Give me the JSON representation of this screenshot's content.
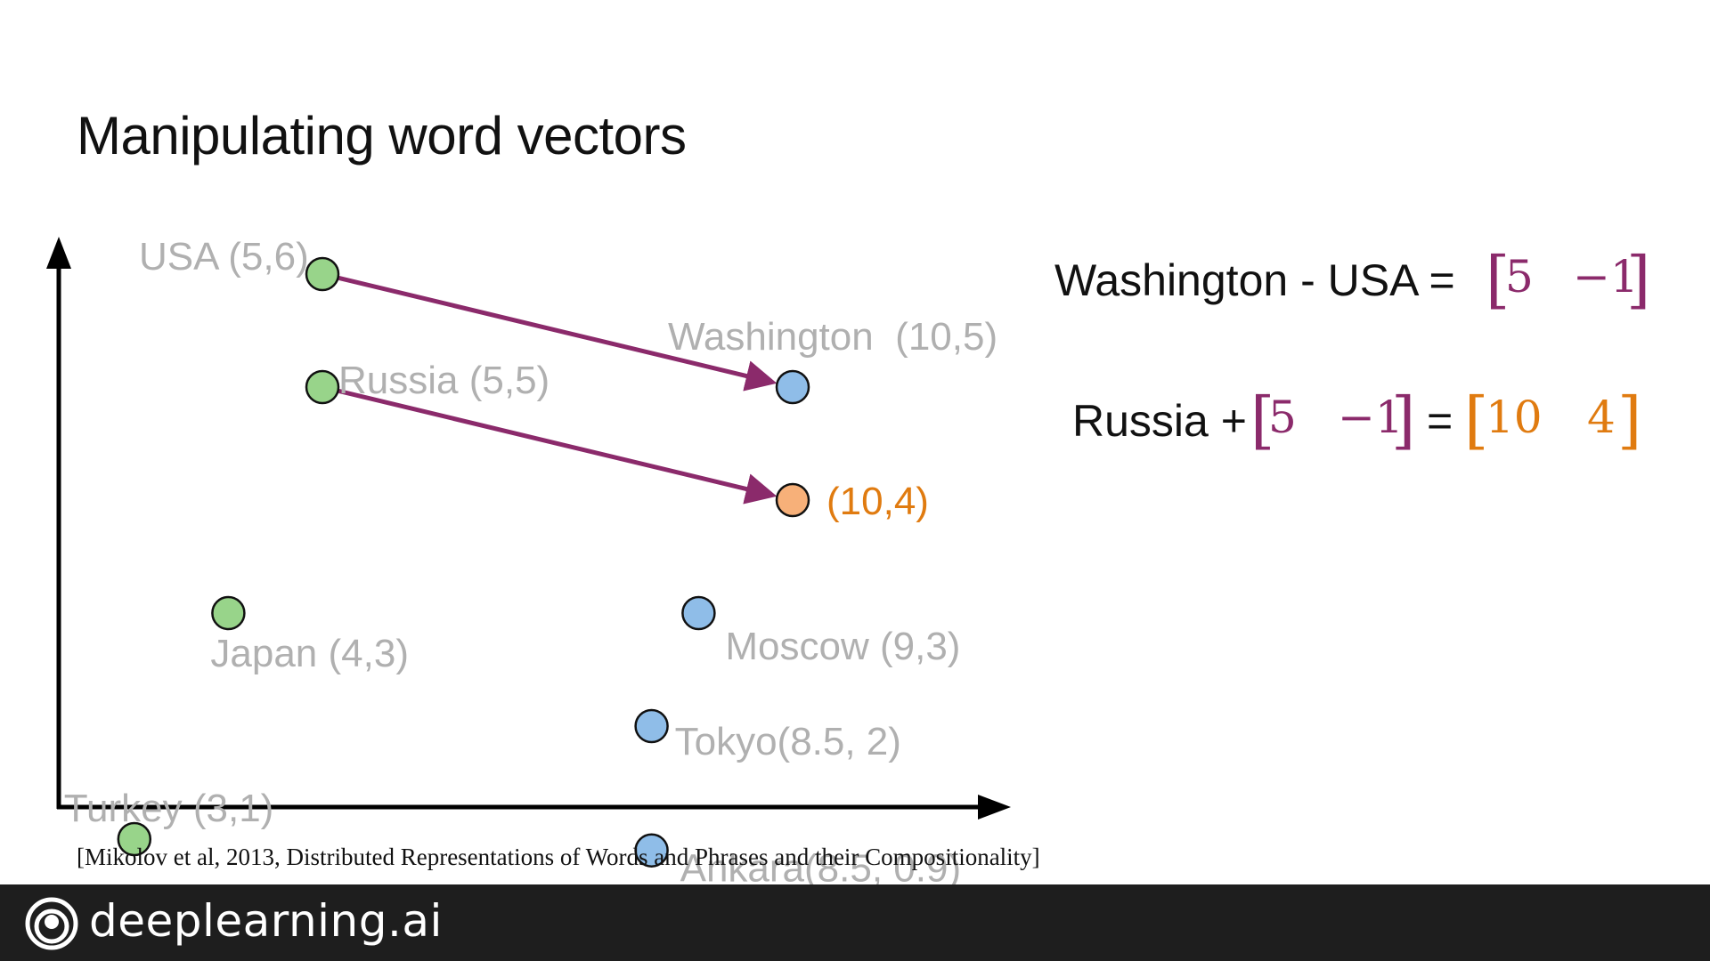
{
  "slide": {
    "title": "Manipulating word vectors",
    "citation": "[Mikolov et al, 2013, Distributed Representations of Words and Phrases and their Compositionality]"
  },
  "footer": {
    "brand": "deeplearning.ai"
  },
  "equations": {
    "eq1": {
      "lhs": "Washington - USA =",
      "vector": [
        "5",
        "−1"
      ],
      "vector_color": "#8b2a6b"
    },
    "eq2": {
      "lhs": "Russia +",
      "vector": [
        "5",
        "−1"
      ],
      "vector_color": "#8b2a6b",
      "equals": "=",
      "result": [
        "10",
        "4"
      ],
      "result_color": "#e07b10"
    }
  },
  "chart_data": {
    "type": "scatter",
    "title": "",
    "xlabel": "",
    "ylabel": "",
    "grid": false,
    "series": [
      {
        "name": "",
        "color": "#98d48a",
        "points": [
          {
            "label": "USA (5,6)",
            "x": 5,
            "y": 6
          },
          {
            "label": "Russia (5,5)",
            "x": 5,
            "y": 5
          },
          {
            "label": "Japan (4,3)",
            "x": 4,
            "y": 3
          },
          {
            "label": "Turkey (3,1)",
            "x": 3,
            "y": 1
          }
        ]
      },
      {
        "name": "",
        "color": "#8fbde8",
        "points": [
          {
            "label": "Washington  (10,5)",
            "x": 10,
            "y": 5
          },
          {
            "label": "Moscow (9,3)",
            "x": 9,
            "y": 3
          },
          {
            "label": "Tokyo(8.5, 2)",
            "x": 8.5,
            "y": 2
          },
          {
            "label": "Ankara(8.5, 0.9)",
            "x": 8.5,
            "y": 0.9
          }
        ]
      },
      {
        "name": "",
        "color": "#f7b079",
        "label_color": "#e07b10",
        "points": [
          {
            "label": "(10,4)",
            "x": 10,
            "y": 4
          }
        ]
      }
    ],
    "arrows": [
      {
        "from": [
          5,
          6
        ],
        "to": [
          10,
          5
        ],
        "color": "#8b2a6b"
      },
      {
        "from": [
          5,
          5
        ],
        "to": [
          10,
          4
        ],
        "color": "#8b2a6b"
      }
    ]
  }
}
